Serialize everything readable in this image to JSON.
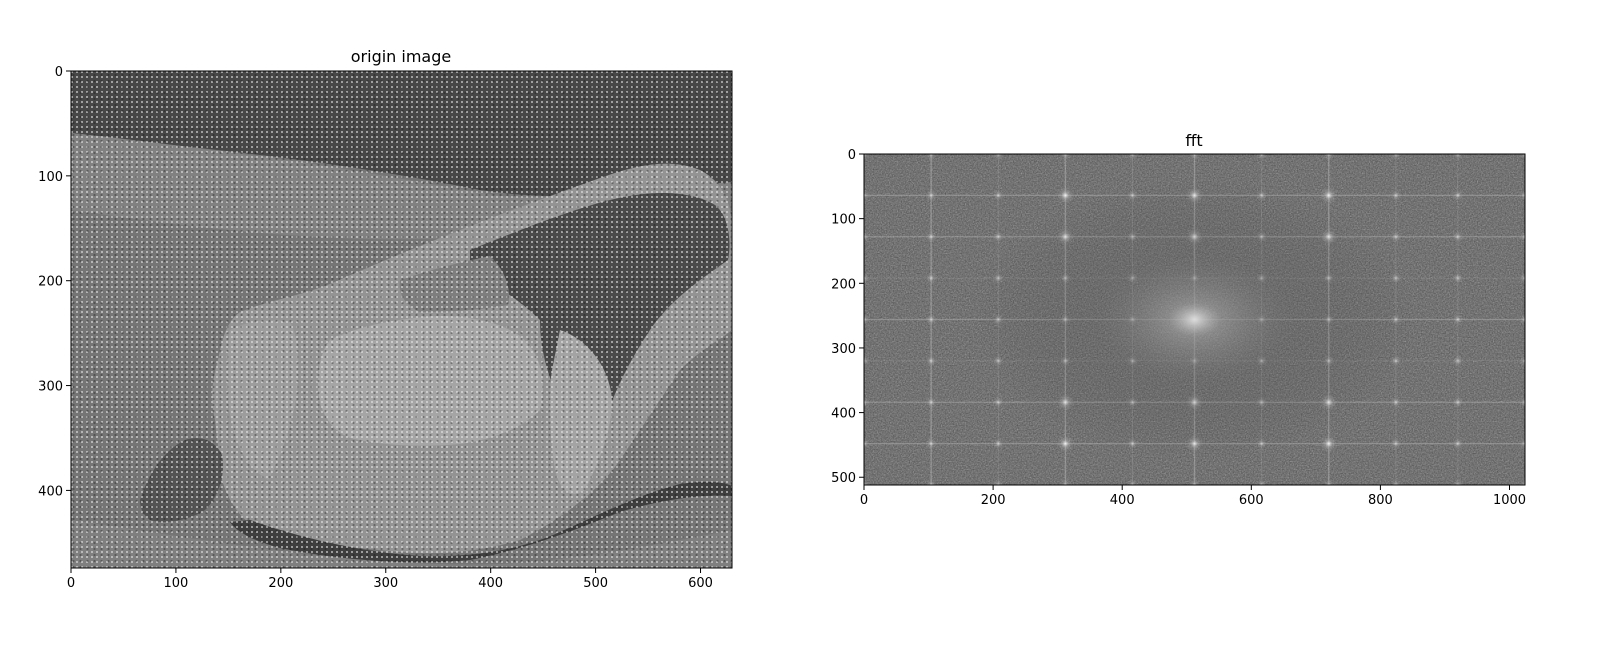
{
  "chart_data": [
    {
      "type": "heatmap",
      "title": "origin image",
      "colormap": "gray",
      "content": "grayscale photograph of a large rock on sand overlaid with a dense periodic dot/noise pattern",
      "image_shape": [
        474,
        630
      ],
      "xlim": [
        0,
        630
      ],
      "ylim": [
        474,
        0
      ],
      "xticks": [
        0,
        100,
        200,
        300,
        400,
        500,
        600
      ],
      "yticks": [
        0,
        100,
        200,
        300,
        400
      ],
      "xlabel": "",
      "ylabel": ""
    },
    {
      "type": "heatmap",
      "title": "fft",
      "colormap": "gray",
      "content": "log-magnitude 2D FFT spectrum: dark noisy background, bright center at about (512, 256), periodic grid of bright peaks with horizontal and vertical streaks",
      "image_shape": [
        512,
        1024
      ],
      "xlim": [
        0,
        1024
      ],
      "ylim": [
        512,
        0
      ],
      "center_peak": [
        512,
        256
      ],
      "peak_grid_x": [
        0,
        104,
        208,
        312,
        416,
        512,
        616,
        720,
        824,
        920,
        1024
      ],
      "peak_grid_y": [
        0,
        64,
        128,
        192,
        256,
        320,
        384,
        448,
        512
      ],
      "xticks": [
        0,
        200,
        400,
        600,
        800,
        1000
      ],
      "yticks": [
        0,
        100,
        200,
        300,
        400,
        500
      ],
      "xlabel": "",
      "ylabel": ""
    }
  ]
}
